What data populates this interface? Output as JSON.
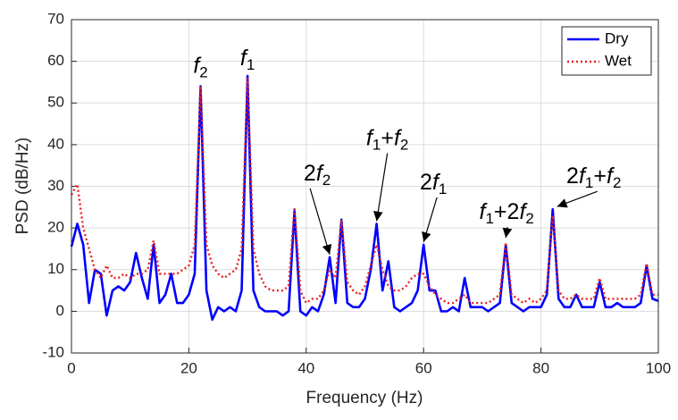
{
  "chart_data": {
    "type": "line",
    "xlabel": "Frequency (Hz)",
    "ylabel": "PSD (dB/Hz)",
    "x": [
      0,
      1,
      2,
      3,
      4,
      5,
      6,
      7,
      8,
      9,
      10,
      11,
      12,
      13,
      14,
      15,
      16,
      17,
      18,
      19,
      20,
      21,
      22,
      23,
      24,
      25,
      26,
      27,
      28,
      29,
      30,
      31,
      32,
      33,
      34,
      35,
      36,
      37,
      38,
      39,
      40,
      41,
      42,
      43,
      44,
      45,
      46,
      47,
      48,
      49,
      50,
      51,
      52,
      53,
      54,
      55,
      56,
      57,
      58,
      59,
      60,
      61,
      62,
      63,
      64,
      65,
      66,
      67,
      68,
      69,
      70,
      71,
      72,
      73,
      74,
      75,
      76,
      77,
      78,
      79,
      80,
      81,
      82,
      83,
      84,
      85,
      86,
      87,
      88,
      89,
      90,
      91,
      92,
      93,
      94,
      95,
      96,
      97,
      98,
      99,
      100
    ],
    "series": [
      {
        "name": "Dry",
        "color": "#0000ff",
        "style": "solid",
        "values": [
          15.5,
          21,
          16,
          2,
          10,
          9,
          -1,
          5,
          6,
          5,
          7,
          14,
          8,
          3,
          16,
          2,
          4,
          9,
          2,
          2,
          4,
          9,
          54,
          5,
          -2,
          1,
          0,
          1,
          0,
          5,
          56.5,
          5,
          1,
          0,
          0,
          0,
          -1,
          0,
          24,
          0,
          -1,
          1,
          0,
          4,
          13,
          2,
          22,
          2,
          1,
          1,
          3,
          10,
          21,
          5,
          12,
          1,
          0,
          1,
          2,
          5,
          16,
          5,
          5,
          0,
          0,
          1,
          0,
          8,
          1,
          1,
          1,
          0,
          1,
          2,
          16,
          2,
          1,
          0,
          1,
          1,
          1,
          4,
          24.5,
          3,
          1,
          1,
          4,
          1,
          1,
          1,
          7,
          1,
          1,
          2,
          1,
          1,
          1,
          2,
          11,
          3,
          2.5
        ]
      },
      {
        "name": "Wet",
        "color": "#e8201c",
        "style": "dotted",
        "values": [
          28,
          30.5,
          20,
          15,
          10,
          8,
          11,
          8,
          8,
          9,
          8,
          9,
          9,
          10,
          17,
          9,
          9,
          9,
          9,
          10,
          11,
          16,
          54,
          16,
          11,
          9,
          8,
          9,
          10,
          15,
          56,
          15,
          9,
          6,
          5,
          5,
          5,
          6,
          25,
          5,
          2,
          3,
          3,
          5,
          10,
          8,
          22,
          7,
          5,
          4,
          6,
          11,
          16,
          10,
          6,
          5,
          5,
          6,
          8,
          9,
          9,
          6,
          4,
          3,
          2,
          2,
          3,
          4,
          2,
          2,
          2,
          2,
          3,
          4,
          16.5,
          4,
          3,
          2,
          3,
          2,
          3,
          5,
          23,
          5,
          3,
          3,
          4,
          3,
          3,
          3,
          8,
          3,
          3,
          3,
          3,
          3,
          3,
          4,
          11.5,
          4,
          4
        ]
      }
    ],
    "xlim": [
      0,
      100
    ],
    "xticks": [
      0,
      20,
      40,
      60,
      80,
      100
    ],
    "ylim": [
      -10,
      70
    ],
    "yticks": [
      -10,
      0,
      10,
      20,
      30,
      40,
      50,
      60,
      70
    ],
    "grid": true,
    "legend": "northeast",
    "annotations": [
      {
        "text": "f2",
        "x": 22,
        "y": 54,
        "arrow": false
      },
      {
        "text": "f1",
        "x": 30,
        "y": 56.5,
        "arrow": false
      },
      {
        "text": "2f2",
        "x": 44,
        "y": 13,
        "arrow": true
      },
      {
        "text": "f1+f2",
        "x": 52,
        "y": 21,
        "arrow": true
      },
      {
        "text": "2f1",
        "x": 60,
        "y": 16,
        "arrow": true
      },
      {
        "text": "f1+2f2",
        "x": 74,
        "y": 17,
        "arrow": true
      },
      {
        "text": "2f1+f2",
        "x": 82,
        "y": 24.5,
        "arrow": true
      }
    ]
  }
}
